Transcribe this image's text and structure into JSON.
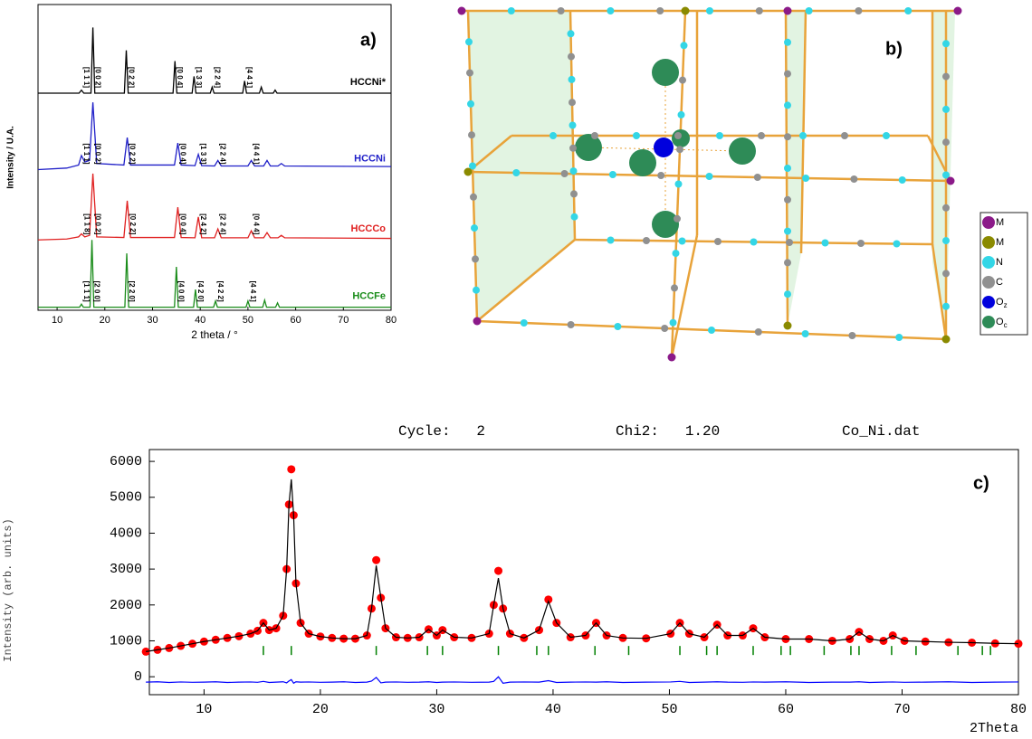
{
  "chart_data": [
    {
      "type": "line",
      "panel_label": "a)",
      "x_label": "2 theta / °",
      "y_label": "Intensity / U.A.",
      "xlim": [
        6,
        80
      ],
      "xticks": [
        10,
        20,
        30,
        40,
        50,
        60,
        70,
        80
      ],
      "ylim": [
        0,
        100
      ],
      "series": [
        {
          "name": "HCCNi*",
          "color": "#000000",
          "x": [
            6,
            14.6,
            15.1,
            15.6,
            17.1,
            17.5,
            17.9,
            24.1,
            24.5,
            24.9,
            34.3,
            34.7,
            35.1,
            38.3,
            38.7,
            39.1,
            42.1,
            42.5,
            42.9,
            48.9,
            49.3,
            49.7,
            52.4,
            52.8,
            53.2,
            55.3,
            55.7,
            56.1,
            80
          ],
          "values": [
            71,
            71,
            72,
            71,
            71,
            92.5,
            71,
            71,
            85,
            71,
            71,
            81.5,
            71,
            71,
            76.5,
            71,
            71,
            73,
            71,
            71,
            75,
            71,
            71,
            73,
            71,
            71,
            72,
            71,
            71
          ],
          "peak_labels": [
            {
              "x": 15.1,
              "label": "[1 1 1]"
            },
            {
              "x": 17.5,
              "label": "[0 0 2]"
            },
            {
              "x": 24.5,
              "label": "[0 2 2]"
            },
            {
              "x": 34.7,
              "label": "[0 0 4]"
            },
            {
              "x": 38.7,
              "label": "[1 3 3]"
            },
            {
              "x": 42.5,
              "label": "[2 2 4]"
            },
            {
              "x": 49.3,
              "label": "[4 4 1]"
            }
          ]
        },
        {
          "name": "HCCNi",
          "color": "#1f1fc8",
          "x": [
            6,
            12,
            14.5,
            15.1,
            15.8,
            16.8,
            17.5,
            18.3,
            24,
            24.7,
            25.4,
            34.6,
            35.3,
            36,
            38.9,
            39.6,
            40.3,
            43,
            43.7,
            44.4,
            50,
            50.7,
            51.4,
            53.3,
            54,
            54.7,
            56.3,
            57,
            57.7,
            80
          ],
          "values": [
            46,
            46.5,
            47.5,
            50.6,
            48.5,
            49,
            68,
            48,
            47.5,
            56.5,
            47.5,
            47.5,
            54.7,
            47.5,
            47.3,
            51,
            47.3,
            47.2,
            49,
            47.2,
            47.2,
            49,
            47.2,
            47.2,
            49,
            47.2,
            47.2,
            48,
            47.2,
            47
          ],
          "peak_labels": [
            {
              "x": 15.1,
              "label": "[1 1 1]"
            },
            {
              "x": 17.5,
              "label": "[0 0 2]"
            },
            {
              "x": 24.7,
              "label": "[0 2 2]"
            },
            {
              "x": 35.3,
              "label": "[0 0 4]"
            },
            {
              "x": 39.6,
              "label": "[1 3 3]"
            },
            {
              "x": 43.7,
              "label": "[2 2 4]"
            },
            {
              "x": 50.7,
              "label": "[4 4 1]"
            }
          ]
        },
        {
          "name": "HCCCo",
          "color": "#e02020",
          "x": [
            6,
            12,
            14.5,
            15.1,
            15.8,
            16.8,
            17.5,
            18.3,
            24,
            24.7,
            25.4,
            34.6,
            35.3,
            36,
            38.9,
            39.6,
            40.3,
            43,
            43.7,
            44.4,
            50,
            50.7,
            51.4,
            53.3,
            54,
            54.7,
            56.3,
            57,
            57.7,
            80
          ],
          "values": [
            23,
            23.3,
            24,
            25,
            24,
            24.5,
            44.7,
            24,
            23.8,
            35.8,
            23.8,
            23.8,
            33.7,
            23.8,
            23.7,
            30.5,
            23.7,
            23.7,
            26.6,
            23.7,
            23.7,
            26,
            23.7,
            23.7,
            25.4,
            23.7,
            23.7,
            24.5,
            23.7,
            23.5
          ],
          "peak_labels": [
            {
              "x": 15.2,
              "label": "[1 1 8]"
            },
            {
              "x": 17.5,
              "label": "[0 0 2]"
            },
            {
              "x": 24.8,
              "label": "[0 2 2]"
            },
            {
              "x": 35.3,
              "label": "[0 0 4]"
            },
            {
              "x": 39.6,
              "label": "[2 4 2]"
            },
            {
              "x": 43.7,
              "label": "[2 2 4]"
            },
            {
              "x": 50.7,
              "label": "[0 4 4]"
            }
          ]
        },
        {
          "name": "HCCFe",
          "color": "#1a8c1a",
          "x": [
            6,
            14.7,
            15.1,
            15.5,
            16.9,
            17.3,
            17.7,
            24.2,
            24.6,
            25,
            34.6,
            35,
            35.4,
            38.6,
            39,
            39.4,
            42.8,
            43.2,
            43.6,
            49.6,
            50,
            50.4,
            53.1,
            53.5,
            53.9,
            55.8,
            56.2,
            56.6,
            80
          ],
          "values": [
            1,
            1,
            2,
            1,
            1,
            23,
            1,
            1,
            18.6,
            1,
            1,
            14.2,
            1,
            1,
            6.8,
            1,
            1,
            3,
            1,
            1,
            3,
            1,
            1,
            3.3,
            1,
            1,
            2.4,
            1,
            1
          ],
          "peak_labels": [
            {
              "x": 15.1,
              "label": "[1 1 1]"
            },
            {
              "x": 17.3,
              "label": "[2 0 0]"
            },
            {
              "x": 24.6,
              "label": "[2 2 0]"
            },
            {
              "x": 35,
              "label": "[4 0 0]"
            },
            {
              "x": 39,
              "label": "[4 2 0]"
            },
            {
              "x": 43.2,
              "label": "[4 2 2]"
            },
            {
              "x": 50,
              "label": "[4 4 1]"
            }
          ]
        }
      ]
    },
    {
      "type": "line",
      "title": [
        "Cycle:   2",
        "Chi2:   1.20",
        "Co_Ni.dat"
      ],
      "panel_label": "c)",
      "x_label": "2Theta",
      "y_label": "Intensity (arb. units)",
      "xlim": [
        5.3,
        80
      ],
      "xticks": [
        10,
        20,
        30,
        40,
        50,
        60,
        70,
        80
      ],
      "ylim": [
        -500,
        6330
      ],
      "yticks": [
        0,
        1000,
        2000,
        3000,
        4000,
        5000,
        6000
      ],
      "x": [
        5,
        6,
        7,
        8,
        9,
        10,
        11,
        12,
        13,
        14,
        14.6,
        15.1,
        15.6,
        16.2,
        16.8,
        17.1,
        17.3,
        17.5,
        17.7,
        17.9,
        18.3,
        19,
        20,
        21,
        22,
        23,
        24,
        24.4,
        24.8,
        25.2,
        25.6,
        26.5,
        27.5,
        28.5,
        29.3,
        30,
        30.5,
        31.5,
        33,
        34.5,
        34.9,
        35.3,
        35.7,
        36.3,
        37.5,
        38.8,
        39.6,
        40.3,
        41.5,
        42.8,
        43.7,
        44.6,
        46,
        48,
        50.1,
        50.9,
        51.7,
        53,
        54.1,
        55,
        56.3,
        57.2,
        58.2,
        60,
        62,
        64,
        65.5,
        66.3,
        67.2,
        68.4,
        69.2,
        70.2,
        72,
        74,
        76,
        78,
        80
      ],
      "series": [
        {
          "color": "#ff0000",
          "marker": "circle",
          "values": [
            700,
            750,
            800,
            860,
            920,
            980,
            1030,
            1080,
            1130,
            1200,
            1280,
            1500,
            1300,
            1350,
            1700,
            3000,
            4800,
            5780,
            4500,
            2600,
            1500,
            1200,
            1120,
            1080,
            1060,
            1060,
            1150,
            1900,
            3250,
            2200,
            1350,
            1100,
            1080,
            1100,
            1320,
            1150,
            1300,
            1100,
            1080,
            1200,
            2000,
            2950,
            1900,
            1200,
            1080,
            1300,
            2150,
            1500,
            1100,
            1150,
            1500,
            1150,
            1080,
            1070,
            1200,
            1500,
            1200,
            1100,
            1450,
            1150,
            1150,
            1350,
            1100,
            1050,
            1050,
            1000,
            1050,
            1250,
            1050,
            1000,
            1150,
            1000,
            980,
            960,
            950,
            930,
            920
          ]
        },
        {
          "color": "#000000",
          "values": [
            700,
            750,
            800,
            860,
            920,
            980,
            1030,
            1080,
            1130,
            1200,
            1280,
            1500,
            1300,
            1350,
            1700,
            3000,
            4800,
            5500,
            4500,
            2600,
            1500,
            1200,
            1120,
            1080,
            1060,
            1060,
            1150,
            1900,
            3100,
            2200,
            1350,
            1100,
            1080,
            1100,
            1320,
            1150,
            1300,
            1100,
            1080,
            1200,
            2000,
            2750,
            1900,
            1200,
            1080,
            1300,
            2100,
            1500,
            1100,
            1150,
            1500,
            1150,
            1080,
            1070,
            1200,
            1500,
            1200,
            1100,
            1450,
            1150,
            1150,
            1350,
            1100,
            1050,
            1050,
            1000,
            1050,
            1250,
            1050,
            1000,
            1150,
            1000,
            980,
            960,
            950,
            930,
            920
          ]
        },
        {
          "color": "#0000ff",
          "values": [
            -150,
            -140,
            -160,
            -145,
            -155,
            -150,
            -140,
            -160,
            -150,
            -145,
            -155,
            -130,
            -160,
            -150,
            -140,
            -170,
            -120,
            -80,
            -180,
            -140,
            -150,
            -145,
            -155,
            -150,
            -140,
            -160,
            -150,
            -120,
            -20,
            -170,
            -150,
            -145,
            -155,
            -150,
            -140,
            -160,
            -150,
            -145,
            -155,
            -150,
            -130,
            0,
            -180,
            -150,
            -145,
            -150,
            -110,
            -160,
            -150,
            -145,
            -150,
            -140,
            -160,
            -150,
            -145,
            -130,
            -160,
            -150,
            -140,
            -150,
            -155,
            -145,
            -150,
            -140,
            -160,
            -150,
            -150,
            -140,
            -160,
            -150,
            -145,
            -155,
            -150,
            -140,
            -160,
            -150,
            -145
          ]
        }
      ],
      "bragg_positions": [
        15.1,
        17.5,
        24.8,
        29.2,
        30.5,
        35.3,
        38.6,
        39.6,
        43.6,
        46.5,
        50.9,
        53.2,
        54.1,
        57.2,
        59.6,
        60.4,
        63.3,
        65.6,
        66.3,
        69.1,
        71.2,
        74.8,
        76.9,
        77.6
      ],
      "bragg_color": "#008000"
    }
  ],
  "structure": {
    "label": "b)",
    "legend": [
      {
        "label": "M",
        "color": "#8b1a89"
      },
      {
        "label": "M",
        "color": "#8a8a00"
      },
      {
        "label": "N",
        "color": "#33d6e6"
      },
      {
        "label": "C",
        "color": "#909090"
      },
      {
        "label": "O",
        "subscript": "z",
        "color": "#0000dd"
      },
      {
        "label": "O",
        "subscript": "c",
        "color": "#2e8b57"
      }
    ]
  }
}
